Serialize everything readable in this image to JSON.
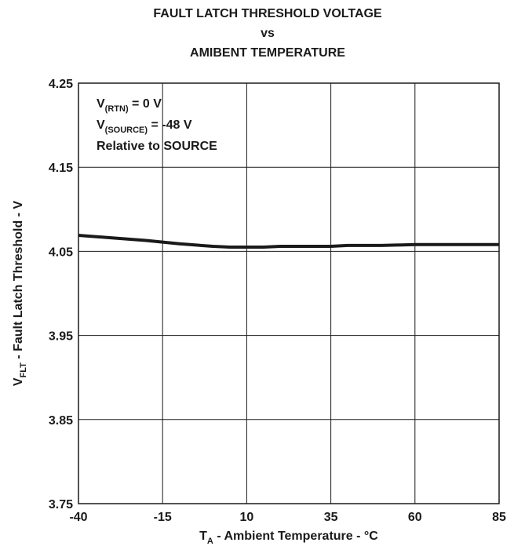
{
  "chart_data": {
    "type": "line",
    "title": [
      "FAULT LATCH THRESHOLD VOLTAGE",
      "vs",
      "AMIBENT TEMPERATURE"
    ],
    "xlabel": {
      "main": "T",
      "sub": "A",
      "rest": " - Ambient Temperature - °C"
    },
    "ylabel": {
      "main": "V",
      "sub": "FLT",
      "rest": " - Fault Latch Threshold - V"
    },
    "xlim": [
      -40,
      85
    ],
    "ylim": [
      3.75,
      4.25
    ],
    "x_ticks": [
      -40,
      -15,
      10,
      35,
      60,
      85
    ],
    "x_tick_labels": [
      "-40",
      "-15",
      "10",
      "35",
      "60",
      "85"
    ],
    "y_ticks": [
      3.75,
      3.85,
      3.95,
      4.05,
      4.15,
      4.25
    ],
    "y_tick_labels": [
      "3.75",
      "3.85",
      "3.95",
      "4.05",
      "4.15",
      "4.25"
    ],
    "grid": true,
    "annotations": [
      {
        "main": "V",
        "sub": "(RTN)",
        "rest": " = 0 V"
      },
      {
        "main": "V",
        "sub": "(SOURCE)",
        "rest": " = -48 V"
      },
      {
        "main": "Relative to SOURCE",
        "sub": "",
        "rest": ""
      }
    ],
    "series": [
      {
        "x": [
          -40,
          -30,
          -20,
          -10,
          0,
          5,
          10,
          15,
          20,
          30,
          35,
          40,
          50,
          60,
          70,
          85
        ],
        "y": [
          4.069,
          4.066,
          4.063,
          4.059,
          4.056,
          4.055,
          4.055,
          4.055,
          4.056,
          4.056,
          4.056,
          4.057,
          4.057,
          4.058,
          4.058,
          4.058
        ]
      }
    ],
    "colors": {
      "line": "#1a1a1a",
      "grid": "#1a1a1a",
      "text": "#1a1a1a"
    }
  }
}
